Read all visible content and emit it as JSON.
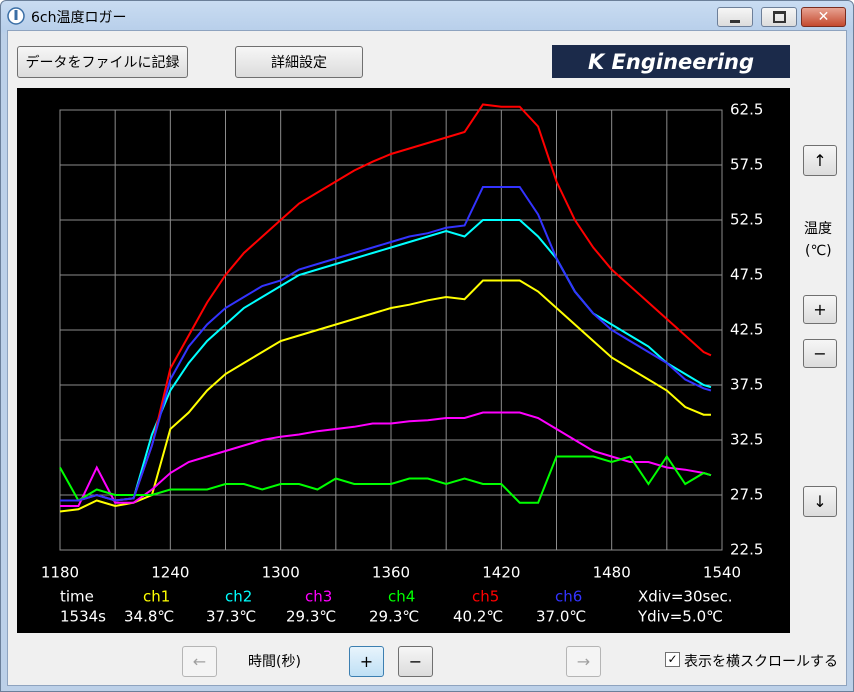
{
  "window": {
    "title": "6ch温度ロガー"
  },
  "toolbar": {
    "record_button": "データをファイルに記録",
    "settings_button": "詳細設定",
    "logo": "K Engineering"
  },
  "chart_data": {
    "type": "line",
    "x": [
      1180,
      1190,
      1200,
      1210,
      1220,
      1230,
      1240,
      1250,
      1260,
      1270,
      1280,
      1290,
      1300,
      1310,
      1320,
      1330,
      1340,
      1350,
      1360,
      1370,
      1380,
      1390,
      1400,
      1410,
      1420,
      1430,
      1440,
      1450,
      1460,
      1470,
      1480,
      1490,
      1500,
      1510,
      1520,
      1530,
      1534
    ],
    "series": [
      {
        "name": "ch1",
        "color": "#ffff00",
        "values": [
          26,
          26.2,
          27,
          26.5,
          26.8,
          27.5,
          33.5,
          35,
          37,
          38.5,
          39.5,
          40.5,
          41.5,
          42,
          42.5,
          43,
          43.5,
          44,
          44.5,
          44.8,
          45.2,
          45.5,
          45.3,
          47,
          47,
          47,
          46,
          44.5,
          43,
          41.5,
          40,
          39,
          38,
          37,
          35.5,
          34.8,
          34.8
        ]
      },
      {
        "name": "ch2",
        "color": "#00ffff",
        "values": [
          27,
          27,
          27.5,
          27,
          27.2,
          33,
          37,
          39.5,
          41.5,
          43,
          44.5,
          45.5,
          46.5,
          47.5,
          48,
          48.5,
          49,
          49.5,
          50,
          50.5,
          51,
          51.5,
          51,
          52.5,
          52.5,
          52.5,
          51,
          49,
          46,
          44,
          43,
          42,
          41,
          39.5,
          38.5,
          37.5,
          37.3
        ]
      },
      {
        "name": "ch3",
        "color": "#ff00ff",
        "values": [
          26.5,
          26.5,
          30,
          26.8,
          26.8,
          28,
          29.5,
          30.5,
          31,
          31.5,
          32,
          32.5,
          32.8,
          33,
          33.3,
          33.5,
          33.7,
          34,
          34,
          34.2,
          34.3,
          34.5,
          34.5,
          35,
          35,
          35,
          34.5,
          33.5,
          32.5,
          31.5,
          31,
          30.5,
          30.5,
          30,
          29.8,
          29.5,
          29.3
        ]
      },
      {
        "name": "ch4",
        "color": "#00ff00",
        "values": [
          30,
          27,
          28,
          27.5,
          27.5,
          27.5,
          28,
          28,
          28,
          28.5,
          28.5,
          28,
          28.5,
          28.5,
          28,
          29,
          28.5,
          28.5,
          28.5,
          29,
          29,
          28.5,
          29,
          28.5,
          28.5,
          26.8,
          26.8,
          31,
          31,
          31,
          30.5,
          31,
          28.5,
          31,
          28.5,
          29.5,
          29.3
        ]
      },
      {
        "name": "ch5",
        "color": "#ff0000",
        "values": [
          27,
          27,
          27.5,
          27,
          27.2,
          32,
          39,
          42,
          45,
          47.5,
          49.5,
          51,
          52.5,
          54,
          55,
          56,
          57,
          57.8,
          58.5,
          59,
          59.5,
          60,
          60.5,
          63,
          62.8,
          62.8,
          61,
          56,
          52.5,
          50,
          48,
          46.5,
          45,
          43.5,
          42,
          40.5,
          40.2
        ]
      },
      {
        "name": "ch6",
        "color": "#3333ff",
        "values": [
          27,
          27,
          27.5,
          27,
          27.2,
          32,
          38,
          41,
          43,
          44.5,
          45.5,
          46.5,
          47,
          48,
          48.5,
          49,
          49.5,
          50,
          50.5,
          51,
          51.3,
          51.8,
          52,
          55.5,
          55.5,
          55.5,
          53,
          49,
          46,
          44,
          42.5,
          41.5,
          40.5,
          39.5,
          38,
          37.2,
          37
        ]
      }
    ],
    "xlim": [
      1180,
      1540
    ],
    "ylim": [
      22.5,
      62.5
    ],
    "xticks": [
      1180,
      1240,
      1300,
      1360,
      1420,
      1480,
      1540
    ],
    "x_gridlines": [
      1210,
      1270,
      1330,
      1390,
      1450,
      1510
    ],
    "yticks": [
      22.5,
      27.5,
      32.5,
      37.5,
      42.5,
      47.5,
      52.5,
      57.5,
      62.5
    ],
    "grid": true
  },
  "readout": {
    "time_label": "time",
    "time_value": "1534s",
    "channel_values": [
      "34.8℃",
      "37.3℃",
      "29.3℃",
      "29.3℃",
      "40.2℃",
      "37.0℃"
    ],
    "xdiv": "Xdiv=30sec.",
    "ydiv": "Ydiv=5.0℃"
  },
  "side_panel": {
    "up": "↑",
    "unit_label": "温度",
    "unit": "(℃)",
    "zoom_in": "+",
    "zoom_out": "−",
    "down": "↓"
  },
  "bottom_bar": {
    "left": "←",
    "time_label": "時間(秒)",
    "zoom_in": "+",
    "zoom_out": "−",
    "right": "→",
    "scroll_checkbox": "表示を横スクロールする",
    "scroll_checked": true
  }
}
